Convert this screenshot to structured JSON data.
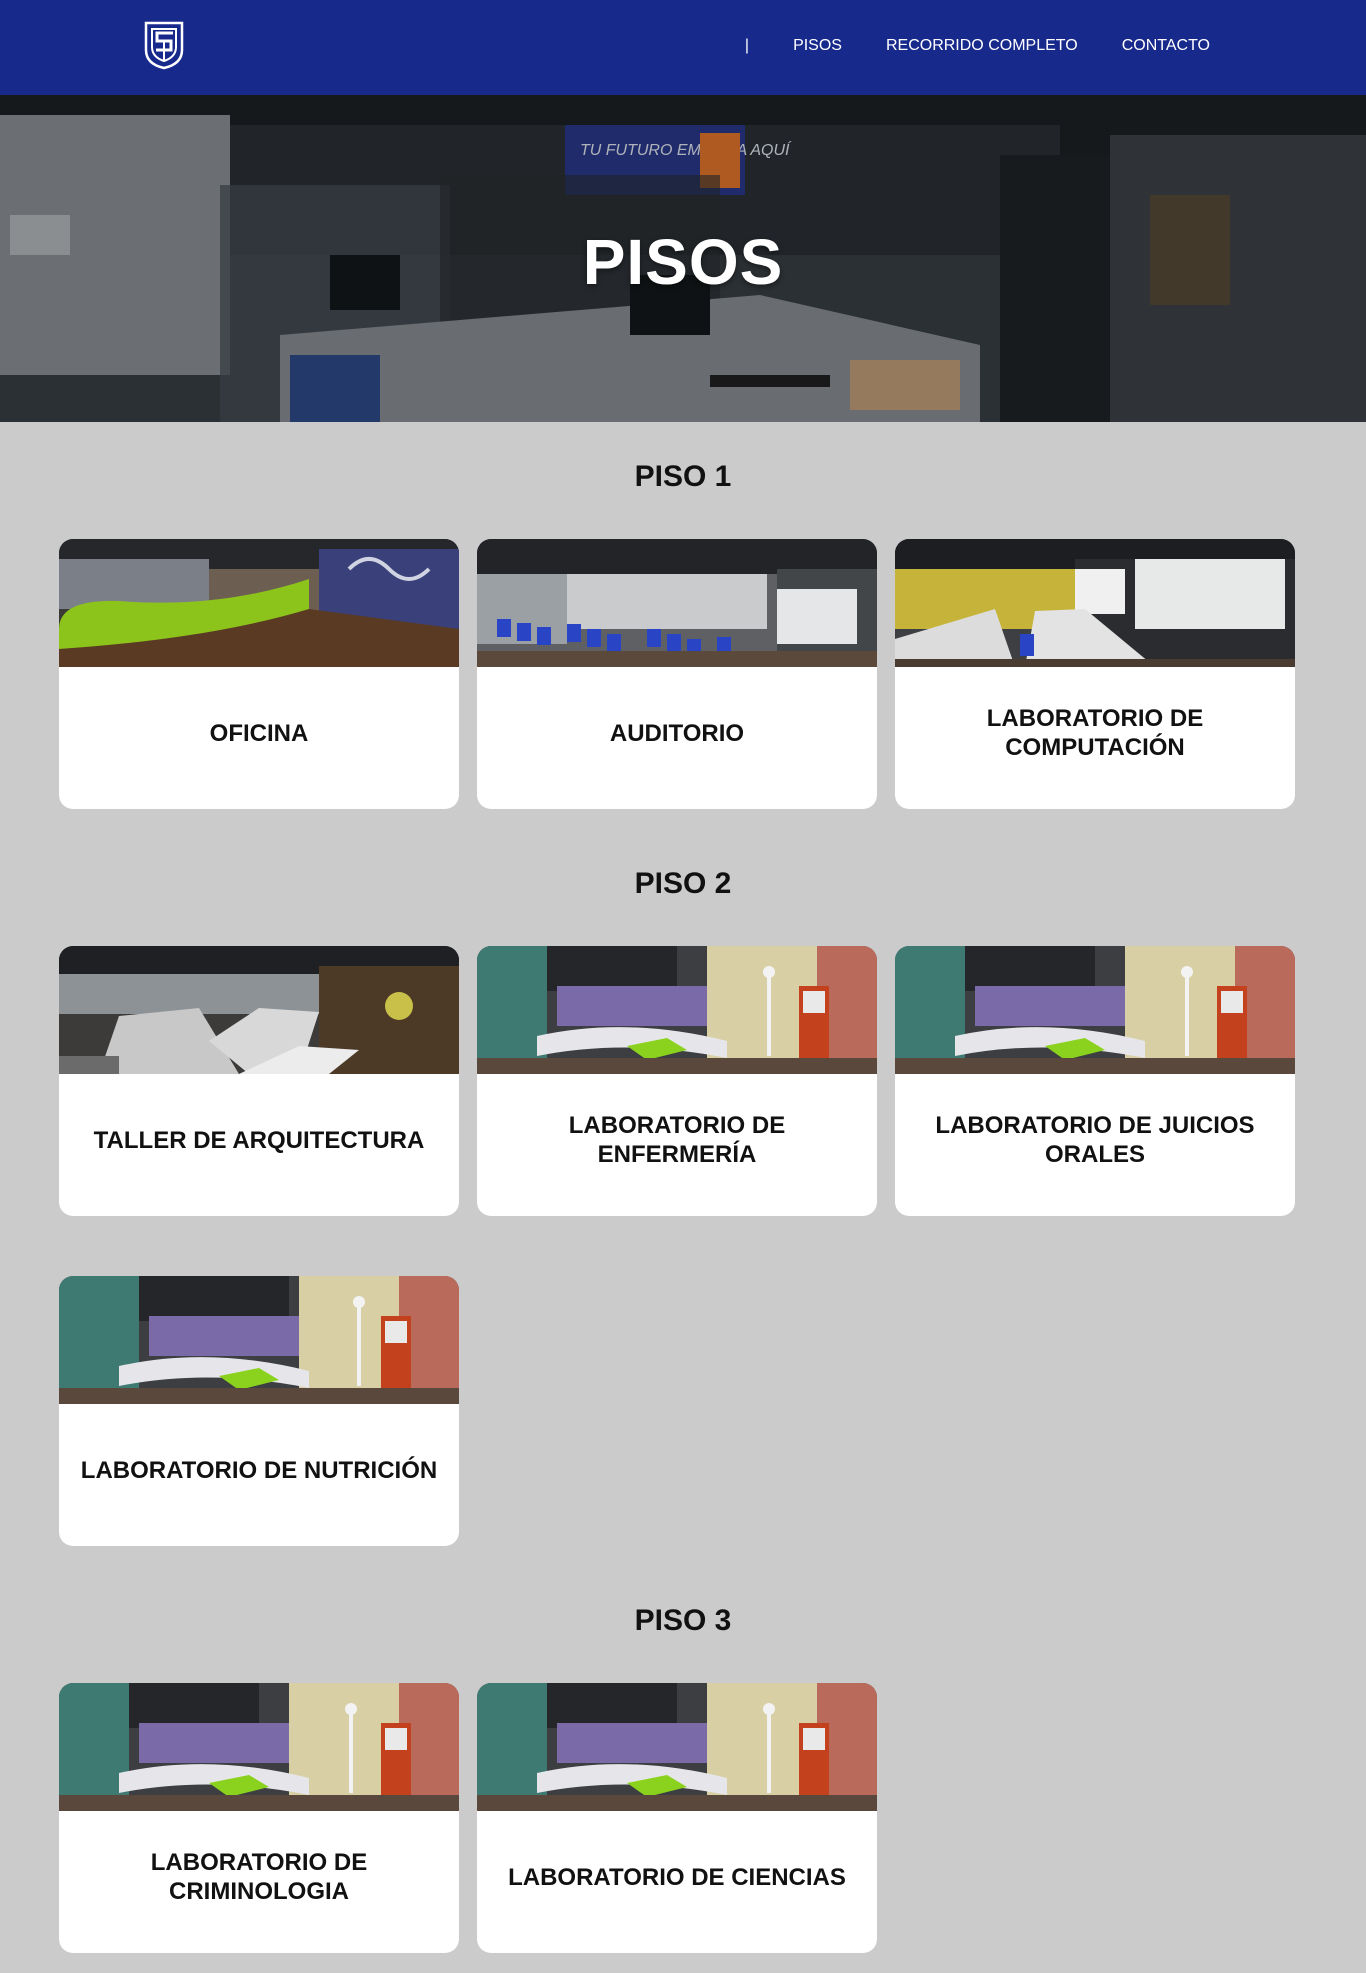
{
  "nav": {
    "separator": "|",
    "items": [
      {
        "label": "PISOS"
      },
      {
        "label": "RECORRIDO COMPLETO"
      },
      {
        "label": "CONTACTO"
      }
    ]
  },
  "hero": {
    "title": "PISOS",
    "sign_text": "TU FUTURO EMPIEZA AQUÍ"
  },
  "floors": [
    {
      "title": "PISO 1",
      "rooms": [
        {
          "label": "OFICINA",
          "scene": "lounge"
        },
        {
          "label": "AUDITORIO",
          "scene": "auditorium"
        },
        {
          "label": "LABORATORIO DE COMPUTACIÓN",
          "scene": "computer-lab"
        }
      ]
    },
    {
      "title": "PISO 2",
      "rooms": [
        {
          "label": "TALLER DE ARQUITECTURA",
          "scene": "architecture"
        },
        {
          "label": "LABORATORIO DE ENFERMERÍA",
          "scene": "medical-lab"
        },
        {
          "label": "LABORATORIO DE JUICIOS ORALES",
          "scene": "medical-lab"
        },
        {
          "label": "LABORATORIO DE NUTRICIÓN",
          "scene": "medical-lab"
        }
      ]
    },
    {
      "title": "PISO 3",
      "rooms": [
        {
          "label": "LABORATORIO DE CRIMINOLOGIA",
          "scene": "medical-lab"
        },
        {
          "label": "LABORATORIO DE CIENCIAS",
          "scene": "medical-lab"
        }
      ]
    }
  ],
  "colors": {
    "header": "#18298c",
    "background": "#cbcbcb",
    "card": "#ffffff"
  }
}
